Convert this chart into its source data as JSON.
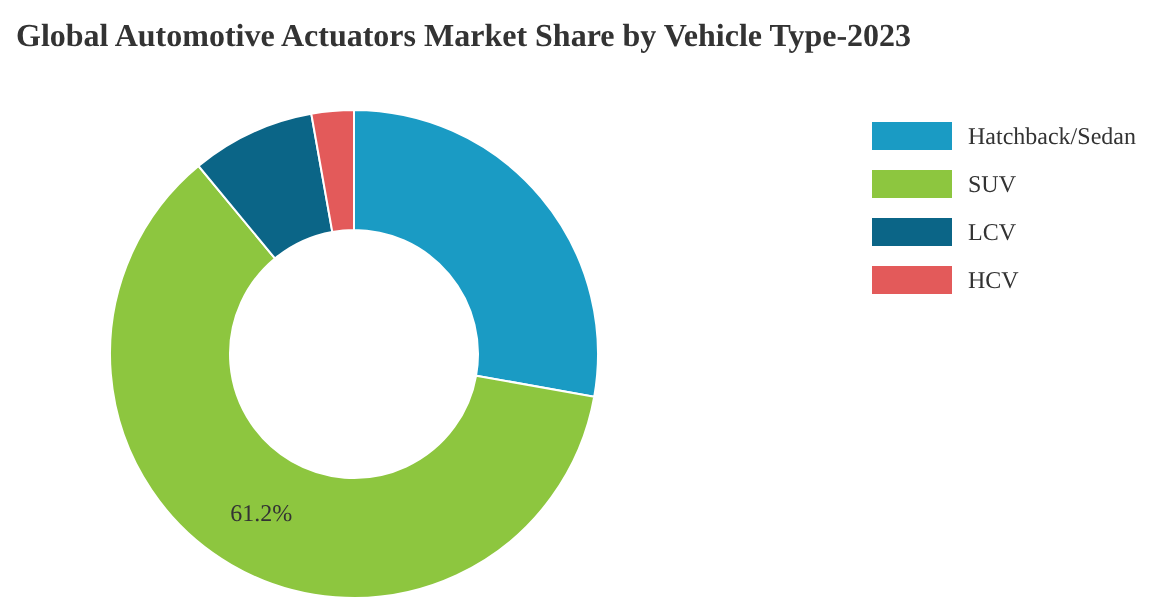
{
  "chart_data": {
    "type": "donut",
    "title": "Global Automotive Actuators Market Share by Vehicle Type-2023",
    "categories": [
      "Hatchback/Sedan",
      "SUV",
      "LCV",
      "HCV"
    ],
    "values": [
      27.8,
      61.2,
      8.2,
      2.8
    ],
    "colors": [
      "#1a9bc4",
      "#8dc63f",
      "#0b6587",
      "#e35a5a"
    ],
    "value_labels": [
      null,
      "61.2%",
      null,
      null
    ],
    "legend": "top right"
  }
}
